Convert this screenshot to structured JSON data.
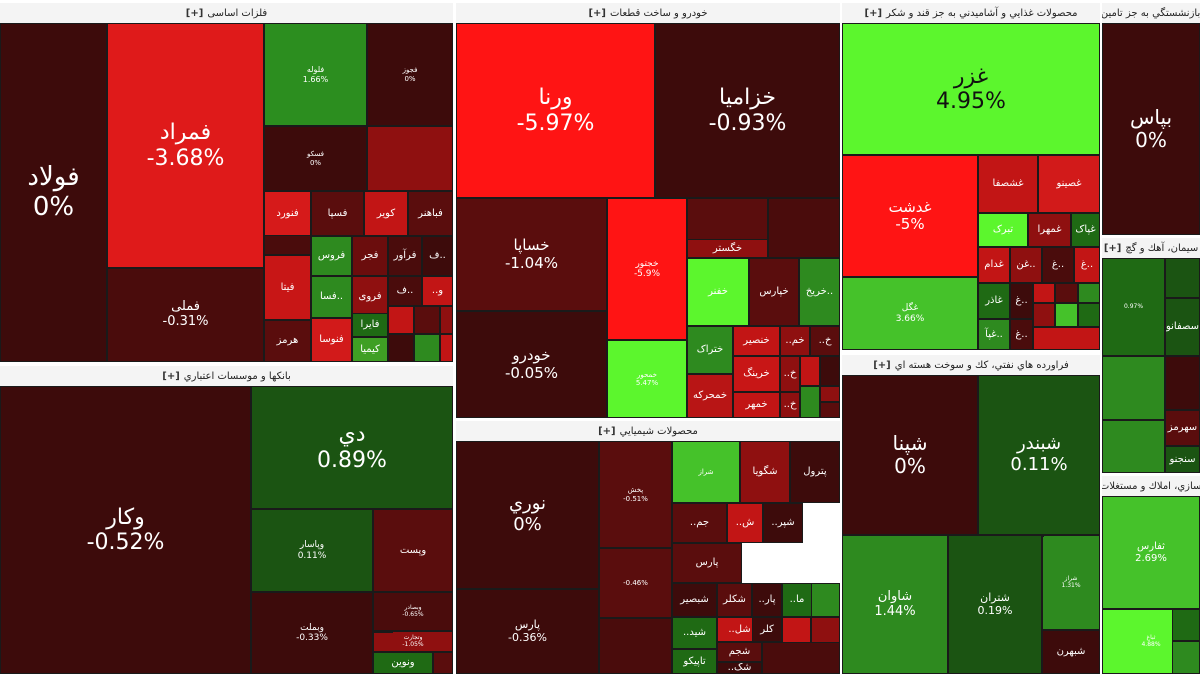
{
  "palette": {
    "deep_red": "#3f0a0a",
    "dark_red": "#6b0d0d",
    "red": "#b40f0f",
    "bright_red": "#e81b1b",
    "neutral": "#4a0d0d",
    "dark_green": "#1b5a12",
    "green": "#2f8a1e",
    "bright_green": "#45c22a",
    "lime": "#5cf62d"
  },
  "sectors": [
    {
      "id": "basic-metals",
      "title": "فلزات اساسی",
      "expand": "[+]",
      "tiles": [
        {
          "sym": "فولاد",
          "chg": "0%",
          "c": "#3d0b0b",
          "fs": 26
        },
        {
          "sym": "فمراد",
          "chg": "-3.68%",
          "c": "#df1a1a",
          "fs": 22
        },
        {
          "sym": "فملی",
          "chg": "-0.31%",
          "c": "#4a0c0c",
          "fs": 13
        },
        {
          "sym": "فلوله",
          "chg": "1.66%",
          "c": "#2c8e1f",
          "fs": 8
        },
        {
          "sym": "فجوز",
          "chg": "0%",
          "c": "#3d0b0b",
          "fs": 7
        },
        {
          "sym": "فسکو",
          "chg": "0%",
          "c": "#3d0b0b",
          "fs": 7
        },
        {
          "sym": "",
          "chg": "",
          "c": "#8f1010"
        },
        {
          "sym": "فنورد",
          "chg": "",
          "c": "#d61a1a",
          "fs": 10
        },
        {
          "sym": "فسپا",
          "chg": "",
          "c": "#5a0d0d",
          "fs": 10
        },
        {
          "sym": "کویر",
          "chg": "",
          "c": "#c21515",
          "fs": 10
        },
        {
          "sym": "فباهنر",
          "chg": "",
          "c": "#5a0d0d",
          "fs": 10
        },
        {
          "sym": "فروس",
          "chg": "",
          "c": "#2e8a1f",
          "fs": 10
        },
        {
          "sym": "فجر",
          "chg": "",
          "c": "#6b0d0d",
          "fs": 10
        },
        {
          "sym": "فرآور",
          "chg": "",
          "c": "#4a0c0c",
          "fs": 10
        },
        {
          "sym": "ف..",
          "chg": "",
          "c": "#3d0b0b",
          "fs": 10
        },
        {
          "sym": "فیتا",
          "chg": "",
          "c": "#c81616",
          "fs": 10
        },
        {
          "sym": "فسا..",
          "chg": "",
          "c": "#2e8a1f",
          "fs": 10
        },
        {
          "sym": "فروی",
          "chg": "",
          "c": "#8f1010",
          "fs": 10
        },
        {
          "sym": "ف..",
          "chg": "",
          "c": "#4a0c0c",
          "fs": 10
        },
        {
          "sym": "..و",
          "chg": "",
          "c": "#c21515",
          "fs": 10
        },
        {
          "sym": "هرمز",
          "chg": "",
          "c": "#5a0d0d",
          "fs": 10
        },
        {
          "sym": "فنوسا",
          "chg": "",
          "c": "#d21a1a",
          "fs": 10
        },
        {
          "sym": "فایرا",
          "chg": "",
          "c": "#1f6a14",
          "fs": 10
        },
        {
          "sym": "کیمیا",
          "chg": "",
          "c": "#3f9f24",
          "fs": 10
        },
        {
          "sym": "",
          "chg": "",
          "c": "#c21515"
        },
        {
          "sym": "",
          "chg": "",
          "c": "#5a0d0d"
        },
        {
          "sym": "",
          "chg": "",
          "c": "#8f1010"
        },
        {
          "sym": "",
          "chg": "",
          "c": "#3d0b0b"
        },
        {
          "sym": "",
          "chg": "",
          "c": "#2e8a1f"
        },
        {
          "sym": "",
          "chg": "",
          "c": "#c21515"
        },
        {
          "sym": "",
          "chg": "",
          "c": "#4a0c0c"
        }
      ]
    },
    {
      "id": "auto-parts",
      "title": "خودرو و ساخت قطعات",
      "expand": "[+]",
      "tiles": [
        {
          "sym": "ورنا",
          "chg": "-5.97%",
          "c": "#ff1414",
          "fs": 22
        },
        {
          "sym": "خزامیا",
          "chg": "-0.93%",
          "c": "#3d0b0b",
          "fs": 22
        },
        {
          "sym": "خساپا",
          "chg": "-1.04%",
          "c": "#5a0d0d",
          "fs": 15
        },
        {
          "sym": "خجتور",
          "chg": "-5.9%",
          "c": "#ff1414",
          "fs": 9
        },
        {
          "sym": "",
          "chg": "",
          "c": "#5a0d0d"
        },
        {
          "sym": "",
          "chg": "",
          "c": "#4a0c0c"
        },
        {
          "sym": "",
          "chg": "",
          "c": "#3d0b0b"
        },
        {
          "sym": "خگستر",
          "chg": "",
          "c": "#8f1010"
        },
        {
          "sym": "خودرو",
          "chg": "-0.05%",
          "c": "#3d0b0b",
          "fs": 15
        },
        {
          "sym": "خفنر",
          "chg": "",
          "c": "#5cf62d",
          "fs": 10
        },
        {
          "sym": "خپارس",
          "chg": "",
          "c": "#5a0d0d",
          "fs": 10
        },
        {
          "sym": "خریخ..",
          "chg": "",
          "c": "#2e8a1f",
          "fs": 10
        },
        {
          "sym": "خمحور",
          "chg": "5.47%",
          "c": "#5cf62d",
          "fs": 7
        },
        {
          "sym": "ختراک",
          "chg": "",
          "c": "#2e8a1f",
          "fs": 10
        },
        {
          "sym": "خنصیر",
          "chg": "",
          "c": "#c21515",
          "fs": 10
        },
        {
          "sym": "..خم",
          "chg": "",
          "c": "#8f1010",
          "fs": 10
        },
        {
          "sym": "..خ",
          "chg": "",
          "c": "#5a0d0d",
          "fs": 10
        },
        {
          "sym": "خرینگ",
          "chg": "",
          "c": "#c81616",
          "fs": 10
        },
        {
          "sym": "..خ",
          "chg": "",
          "c": "#8f1010",
          "fs": 10
        },
        {
          "sym": "خمحرکه",
          "chg": "",
          "c": "#b81515",
          "fs": 10
        },
        {
          "sym": "خمهر",
          "chg": "",
          "c": "#c21515",
          "fs": 10
        },
        {
          "sym": "..خ",
          "chg": "",
          "c": "#8f1010",
          "fs": 10
        },
        {
          "sym": "",
          "chg": "",
          "c": "#c21515"
        },
        {
          "sym": "",
          "chg": "",
          "c": "#3d0b0b"
        },
        {
          "sym": "",
          "chg": "",
          "c": "#2e8a1f"
        },
        {
          "sym": "",
          "chg": "",
          "c": "#8f1010"
        },
        {
          "sym": "",
          "chg": "",
          "c": "#5a0d0d"
        }
      ]
    },
    {
      "id": "food",
      "title": "محصولات غذايي و آشاميدني به جز قند و شكر",
      "expand": "[+]",
      "tiles": [
        {
          "sym": "غزر",
          "chg": "4.95%",
          "c": "#5cf62d",
          "fs": 22,
          "dark": true
        },
        {
          "sym": "غدشت",
          "chg": "-5%",
          "c": "#ff1414",
          "fs": 15
        },
        {
          "sym": "غشصفا",
          "chg": "",
          "c": "#c21515",
          "fs": 10
        },
        {
          "sym": "غصینو",
          "chg": "",
          "c": "#d21a1a",
          "fs": 10
        },
        {
          "sym": "تبرک",
          "chg": "",
          "c": "#5cf62d",
          "fs": 10
        },
        {
          "sym": "غمهرا",
          "chg": "",
          "c": "#8f1010",
          "fs": 10
        },
        {
          "sym": "غپاک",
          "chg": "",
          "c": "#1f6a14",
          "fs": 10
        },
        {
          "sym": "غگل",
          "chg": "3.66%",
          "c": "#45c22a",
          "fs": 9
        },
        {
          "sym": "غدام",
          "chg": "",
          "c": "#c21515",
          "fs": 10
        },
        {
          "sym": "غن..",
          "chg": "",
          "c": "#8f1010",
          "fs": 10
        },
        {
          "sym": "غ..",
          "chg": "",
          "c": "#4a0c0c",
          "fs": 10
        },
        {
          "sym": "غ..",
          "chg": "",
          "c": "#c21515",
          "fs": 10
        },
        {
          "sym": "غاذر",
          "chg": "",
          "c": "#1f6a14",
          "fs": 10
        },
        {
          "sym": "غ..",
          "chg": "",
          "c": "#3d0b0b",
          "fs": 10
        },
        {
          "sym": "غپآ..",
          "chg": "",
          "c": "#2e8a1f",
          "fs": 10
        },
        {
          "sym": "غ..",
          "chg": "",
          "c": "#4a0c0c",
          "fs": 10
        },
        {
          "sym": "",
          "chg": "",
          "c": "#c21515"
        },
        {
          "sym": "",
          "chg": "",
          "c": "#5a0d0d"
        },
        {
          "sym": "",
          "chg": "",
          "c": "#2e8a1f"
        },
        {
          "sym": "",
          "chg": "",
          "c": "#8f1010"
        },
        {
          "sym": "",
          "chg": "",
          "c": "#45c22a"
        },
        {
          "sym": "",
          "chg": "",
          "c": "#1f6a14"
        },
        {
          "sym": "",
          "chg": "",
          "c": "#c21515"
        }
      ]
    },
    {
      "id": "social-insurance",
      "title": "بيمه و صندوق بازنشستگي به جز تامين اجتماعي",
      "expand": "[+]",
      "tiles": [
        {
          "sym": "بپاس",
          "chg": "0%",
          "c": "#3d0b0b",
          "fs": 20
        }
      ]
    },
    {
      "id": "banks",
      "title": "بانكها و موسسات اعتباري",
      "expand": "[+]",
      "tiles": [
        {
          "sym": "وکار",
          "chg": "-0.52%",
          "c": "#3d0b0b",
          "fs": 22
        },
        {
          "sym": "دي",
          "chg": "0.89%",
          "c": "#1b5412",
          "fs": 22
        },
        {
          "sym": "وپاسار",
          "chg": "0.11%",
          "c": "#1b5412",
          "fs": 9
        },
        {
          "sym": "وپست",
          "chg": "",
          "c": "#5a0d0d",
          "fs": 10
        },
        {
          "sym": "وبصادر",
          "chg": "-0.65%",
          "c": "#4a0c0c",
          "fs": 6
        },
        {
          "sym": "وبملت",
          "chg": "-0.33%",
          "c": "#3d0b0b",
          "fs": 9
        },
        {
          "sym": "وتجارت",
          "chg": "-1.05%",
          "c": "#8f1010",
          "fs": 6
        },
        {
          "sym": "ونوین",
          "chg": "",
          "c": "#1f6a14",
          "fs": 10
        },
        {
          "sym": "",
          "chg": "",
          "c": "#5a0d0d"
        },
        {
          "sym": "",
          "chg": "",
          "c": "#3d0b0b"
        }
      ]
    },
    {
      "id": "chemicals",
      "title": "محصولات شيميايي",
      "expand": "[+]",
      "tiles": [
        {
          "sym": "نوري",
          "chg": "0%",
          "c": "#3d0b0b",
          "fs": 18
        },
        {
          "sym": "پارس",
          "chg": "-0.36%",
          "c": "#3d0b0b",
          "fs": 11
        },
        {
          "sym": "پخش",
          "chg": "-0.51%",
          "c": "#5a0d0d",
          "fs": 7
        },
        {
          "sym": "",
          "chg": "-0.46%",
          "c": "#5a0d0d",
          "fs": 7
        },
        {
          "sym": "",
          "chg": "",
          "c": "#4a0c0c",
          "fs": 7
        },
        {
          "sym": "شراز",
          "chg": "",
          "c": "#45c22a",
          "fs": 7
        },
        {
          "sym": "شگویا",
          "chg": "",
          "c": "#8f1010",
          "fs": 10
        },
        {
          "sym": "پترول",
          "chg": "",
          "c": "#3d0b0b",
          "fs": 10
        },
        {
          "sym": "..جم",
          "chg": "",
          "c": "#5a0d0d",
          "fs": 10
        },
        {
          "sym": "..ش",
          "chg": "",
          "c": "#c21515",
          "fs": 10
        },
        {
          "sym": "..شپر",
          "chg": "",
          "c": "#3d0b0b",
          "fs": 10
        },
        {
          "sym": "پارس",
          "chg": "",
          "c": "#5a0d0d",
          "fs": 10
        },
        {
          "sym": "شبصیر",
          "chg": "",
          "c": "#3d0b0b",
          "fs": 10
        },
        {
          "sym": "شکلر",
          "chg": "",
          "c": "#5a0d0d",
          "fs": 10
        },
        {
          "sym": "..پار",
          "chg": "",
          "c": "#3d0b0b",
          "fs": 10
        },
        {
          "sym": "..ما",
          "chg": "",
          "c": "#1f6a14",
          "fs": 10
        },
        {
          "sym": "..شل",
          "chg": "",
          "c": "#c21515",
          "fs": 10
        },
        {
          "sym": "کلر",
          "chg": "",
          "c": "#3d0b0b",
          "fs": 10
        },
        {
          "sym": "..شید",
          "chg": "",
          "c": "#1f6a14",
          "fs": 10
        },
        {
          "sym": "شجم",
          "chg": "",
          "c": "#5a0d0d",
          "fs": 10
        },
        {
          "sym": "تاپیکو",
          "chg": "",
          "c": "#1f6a14",
          "fs": 10
        },
        {
          "sym": "..شک",
          "chg": "",
          "c": "#3d0b0b",
          "fs": 10
        },
        {
          "sym": "",
          "chg": "",
          "c": "#c21515"
        },
        {
          "sym": "",
          "chg": "",
          "c": "#2e8a1f"
        },
        {
          "sym": "",
          "chg": "",
          "c": "#8f1010"
        },
        {
          "sym": "",
          "chg": "",
          "c": "#4a0c0c"
        }
      ]
    },
    {
      "id": "oil-products",
      "title": "فراورده هاي نفتي، كك و سوخت هسته اي",
      "expand": "[+]",
      "tiles": [
        {
          "sym": "شپنا",
          "chg": "0%",
          "c": "#3d0b0b",
          "fs": 20
        },
        {
          "sym": "شبندر",
          "chg": "0.11%",
          "c": "#1b5412",
          "fs": 18
        },
        {
          "sym": "شاوان",
          "chg": "1.44%",
          "c": "#2e8a1f",
          "fs": 13
        },
        {
          "sym": "شتران",
          "chg": "0.19%",
          "c": "#1b5412",
          "fs": 11
        },
        {
          "sym": "شراز",
          "chg": "1.31%",
          "c": "#2e8a1f",
          "fs": 6
        },
        {
          "sym": "شبهرن",
          "chg": "",
          "c": "#3d0b0b",
          "fs": 10
        },
        {
          "sym": "",
          "chg": "",
          "c": "#1f6a14"
        }
      ]
    },
    {
      "id": "cement",
      "title": "سيمان، آهك و گچ",
      "expand": "[+]",
      "tiles": [
        {
          "sym": "",
          "chg": "0.97%",
          "c": "#1f6a14",
          "fs": 6
        },
        {
          "sym": "",
          "chg": "",
          "c": "#1b5412",
          "fs": 9
        },
        {
          "sym": "سصفانو",
          "chg": "",
          "c": "#1b5412",
          "fs": 10
        },
        {
          "sym": "",
          "chg": "",
          "c": "#2e8a1f",
          "fs": 6
        },
        {
          "sym": "",
          "chg": "",
          "c": "#3d0b0b",
          "fs": 6
        },
        {
          "sym": "",
          "chg": "",
          "c": "#2e8a1f",
          "fs": 6
        },
        {
          "sym": "سهرمز",
          "chg": "",
          "c": "#5a0d0d",
          "fs": 10
        },
        {
          "sym": "سنجنو",
          "chg": "",
          "c": "#1b5412",
          "fs": 10
        }
      ]
    },
    {
      "id": "real-estate",
      "title": "انبوه سازي، املاك و مستغلات",
      "expand": "[+]",
      "tiles": [
        {
          "sym": "ثفارس",
          "chg": "2.69%",
          "c": "#45c22a",
          "fs": 10
        },
        {
          "sym": "ثباغ",
          "chg": "4.88%",
          "c": "#5cf62d",
          "fs": 6
        },
        {
          "sym": "",
          "chg": "",
          "c": "#1f6a14"
        },
        {
          "sym": "",
          "chg": "",
          "c": "#2e8a1f"
        }
      ]
    }
  ]
}
